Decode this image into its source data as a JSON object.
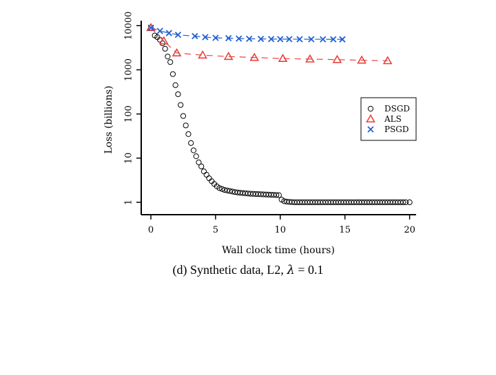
{
  "caption": {
    "prefix": "(d) Synthetic data, L2, ",
    "lambda_symbol": "λ",
    "suffix": " = 0.1"
  },
  "chart_data": {
    "type": "scatter",
    "xlabel": "Wall clock time (hours)",
    "ylabel": "Loss (billions)",
    "xlim": [
      0,
      20.5
    ],
    "ylim": [
      0.75,
      13000
    ],
    "y_scale": "log",
    "x_ticks": [
      0,
      5,
      10,
      15,
      20
    ],
    "x_tick_labels": [
      "0",
      "5",
      "10",
      "15",
      "20"
    ],
    "y_ticks": [
      1,
      10,
      100,
      1000,
      10000
    ],
    "y_tick_labels": [
      "1",
      "10",
      "100",
      "1000",
      "10000"
    ],
    "grid": false,
    "legend_position": "right",
    "series": [
      {
        "name": "DSGD",
        "marker": "circle",
        "color": "#000000",
        "x": [
          0,
          0.3,
          0.5,
          0.7,
          0.9,
          1.1,
          1.3,
          1.5,
          1.7,
          1.9,
          2.1,
          2.3,
          2.5,
          2.7,
          2.9,
          3.1,
          3.3,
          3.5,
          3.7,
          3.9,
          4.1,
          4.3,
          4.5,
          4.7,
          4.9,
          5.1,
          5.3,
          5.5,
          5.7,
          5.9,
          6.1,
          6.3,
          6.5,
          6.7,
          6.9,
          7.1,
          7.3,
          7.5,
          7.7,
          7.9,
          8.1,
          8.3,
          8.5,
          8.7,
          8.9,
          9.1,
          9.3,
          9.5,
          9.7,
          9.9,
          10.1,
          10.3,
          10.5,
          10.7,
          10.9,
          11.1,
          11.3,
          11.5,
          11.7,
          11.9,
          12.1,
          12.3,
          12.5,
          12.7,
          12.9,
          13.1,
          13.3,
          13.5,
          13.7,
          13.9,
          14.1,
          14.3,
          14.5,
          14.7,
          14.9,
          15.1,
          15.3,
          15.5,
          15.7,
          15.9,
          16.1,
          16.3,
          16.5,
          16.7,
          16.9,
          17.1,
          17.3,
          17.5,
          17.7,
          17.9,
          18.1,
          18.3,
          18.5,
          18.7,
          18.9,
          19.1,
          19.3,
          19.5,
          19.7,
          20.0
        ],
        "values": [
          9000,
          6000,
          5500,
          4800,
          4000,
          3000,
          2000,
          1500,
          800,
          450,
          280,
          160,
          90,
          55,
          35,
          22,
          15,
          11,
          8,
          6.5,
          5,
          4.2,
          3.5,
          3.0,
          2.6,
          2.3,
          2.1,
          2.0,
          1.9,
          1.85,
          1.8,
          1.75,
          1.7,
          1.67,
          1.64,
          1.62,
          1.6,
          1.58,
          1.56,
          1.55,
          1.54,
          1.53,
          1.52,
          1.51,
          1.5,
          1.49,
          1.48,
          1.47,
          1.46,
          1.45,
          1.15,
          1.06,
          1.03,
          1.02,
          1.01,
          1.0,
          1.0,
          1.0,
          1.0,
          1.0,
          1.0,
          1.0,
          1.0,
          1.0,
          1.0,
          1.0,
          1.0,
          1.0,
          1.0,
          1.0,
          1.0,
          1.0,
          1.0,
          1.0,
          1.0,
          1.0,
          1.0,
          1.0,
          1.0,
          1.0,
          1.0,
          1.0,
          1.0,
          1.0,
          1.0,
          1.0,
          1.0,
          1.0,
          1.0,
          1.0,
          1.0,
          1.0,
          1.0,
          1.0,
          1.0,
          1.0,
          1.0,
          1.0,
          1.0,
          1.0
        ]
      },
      {
        "name": "ALS",
        "marker": "triangle",
        "color": "#e8413c",
        "x": [
          0,
          1.0,
          2.0,
          4.0,
          6.0,
          8.0,
          10.2,
          12.3,
          14.4,
          16.3,
          18.3
        ],
        "values": [
          9000,
          4500,
          2400,
          2150,
          2000,
          1900,
          1800,
          1750,
          1700,
          1650,
          1600
        ]
      },
      {
        "name": "PSGD",
        "marker": "x",
        "color": "#1f5fd1",
        "x": [
          0,
          0.7,
          1.4,
          2.1,
          3.4,
          4.2,
          5.0,
          6.0,
          6.8,
          7.6,
          8.5,
          9.3,
          10.0,
          10.7,
          11.5,
          12.4,
          13.3,
          14.1,
          14.8
        ],
        "values": [
          9000,
          7600,
          6800,
          6200,
          5800,
          5500,
          5300,
          5200,
          5100,
          5050,
          5000,
          4980,
          4960,
          4950,
          4940,
          4930,
          4920,
          4910,
          4900
        ]
      }
    ]
  }
}
